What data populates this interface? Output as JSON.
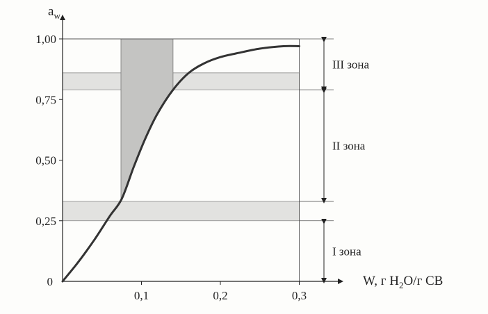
{
  "chart_data": {
    "type": "line",
    "ylabel": "a",
    "ylabel_sub": "w",
    "xlabel": "W, г H",
    "xlabel_sub": "2",
    "xlabel_tail": "O/г СВ",
    "xlim": [
      0,
      0.33
    ],
    "ylim": [
      0,
      1.08
    ],
    "x_ticks": [
      {
        "value": 0.1,
        "label": "0,1"
      },
      {
        "value": 0.2,
        "label": "0,2"
      },
      {
        "value": 0.3,
        "label": "0,3"
      }
    ],
    "y_ticks": [
      {
        "value": 0.25,
        "label": "0,25"
      },
      {
        "value": 0.5,
        "label": "0,50"
      },
      {
        "value": 0.75,
        "label": "0,75"
      },
      {
        "value": 1.0,
        "label": "1,00"
      }
    ],
    "origin_label": "0",
    "series": [
      {
        "values_x": [
          0,
          0.02,
          0.04,
          0.06,
          0.075,
          0.09,
          0.105,
          0.12,
          0.14,
          0.16,
          0.18,
          0.2,
          0.22,
          0.25,
          0.28,
          0.3
        ],
        "values_y": [
          0,
          0.08,
          0.17,
          0.27,
          0.34,
          0.47,
          0.59,
          0.69,
          0.79,
          0.86,
          0.9,
          0.925,
          0.94,
          0.96,
          0.97,
          0.97
        ],
        "color": "#333333"
      }
    ],
    "bands": [
      {
        "y_from": 0.25,
        "y_to": 0.33,
        "x_to": 0.3
      },
      {
        "y_from": 0.79,
        "y_to": 0.86,
        "x_to": 0.3
      }
    ],
    "shaded_region": {
      "x_from": 0.074,
      "x_to": 0.14,
      "y_top": 1.0
    },
    "zones": [
      {
        "label": "I зона",
        "y_from": 0,
        "y_to": 0.25
      },
      {
        "label": "II зона",
        "y_from": 0.33,
        "y_to": 0.79
      },
      {
        "label": "III зона",
        "y_from": 0.79,
        "y_to": 1.0
      }
    ],
    "band_color": "#e2e2e0",
    "shade_color": "#c4c4c2",
    "line_color": "#333333"
  }
}
